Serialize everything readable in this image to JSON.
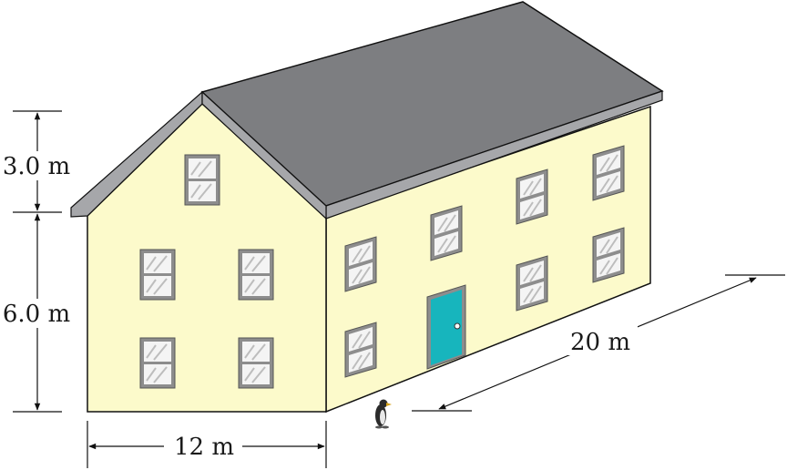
{
  "dimensions": {
    "roof_height": "3.0 m",
    "wall_height": "6.0 m",
    "width": "12 m",
    "length": "20 m"
  },
  "colors": {
    "wall": "#fcfacb",
    "roof": "#7d7e81",
    "roof_edge": "#a6a7aa",
    "window_frame": "#8d8d8d",
    "door": "#17b5bd",
    "outline": "#111111"
  },
  "icons": {
    "figure": "penguin-icon"
  }
}
